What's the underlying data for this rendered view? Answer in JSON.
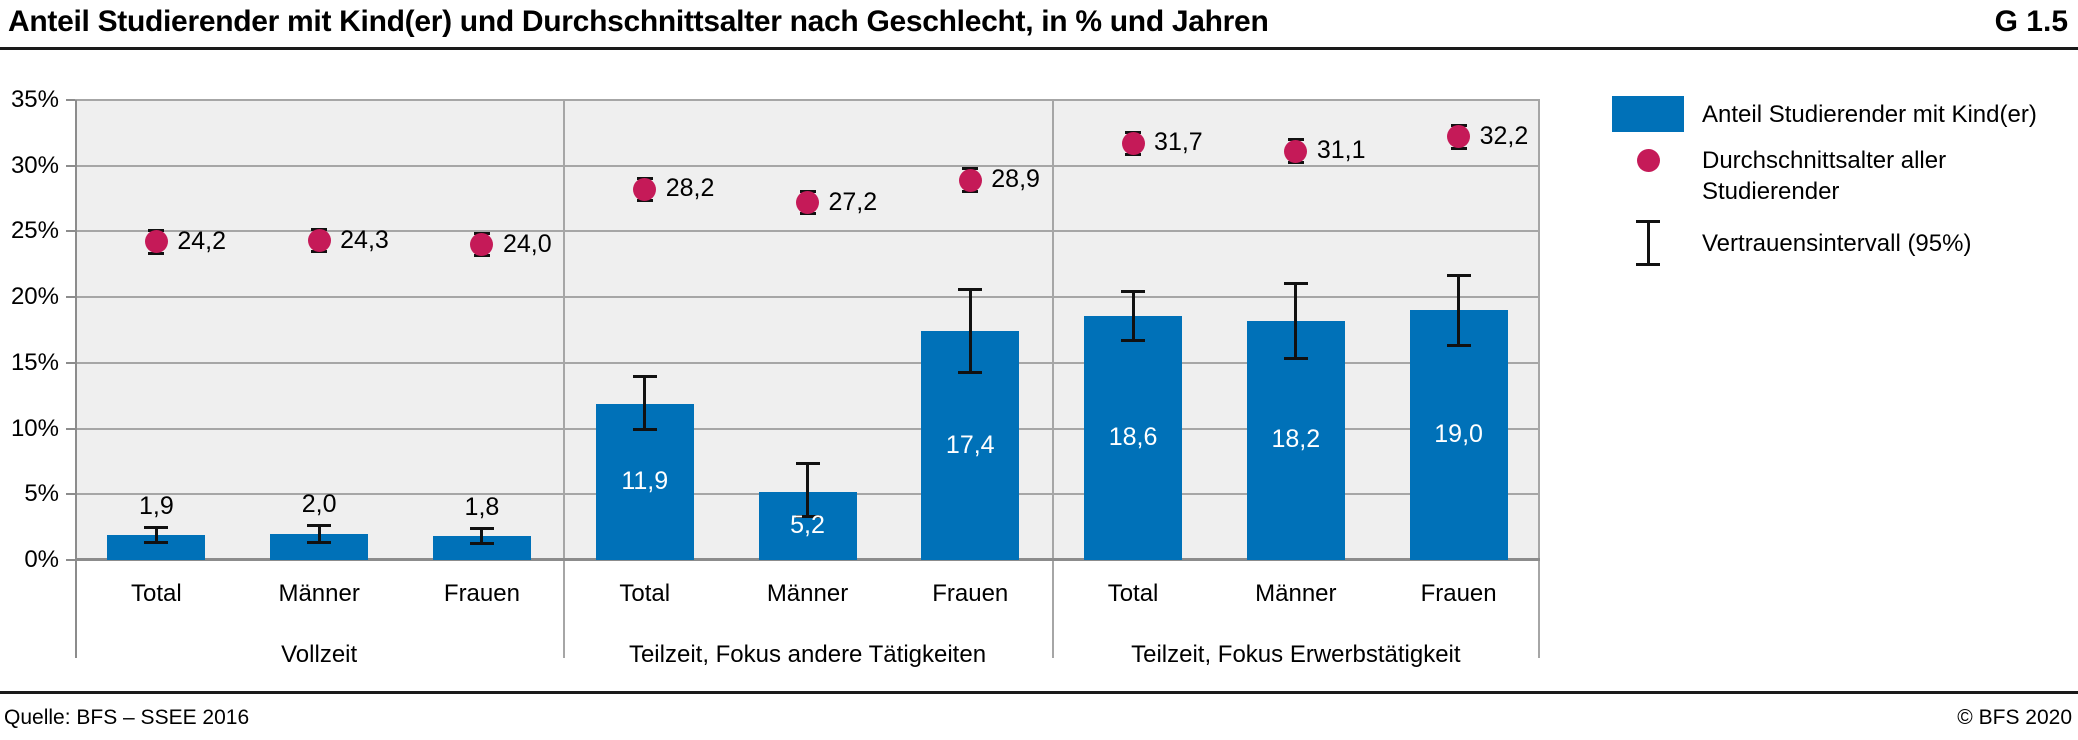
{
  "header": {
    "title": "Anteil Studierender mit Kind(er) und Durchschnittsalter nach Geschlecht, in % und Jahren",
    "figure_id": "G 1.5"
  },
  "footer": {
    "source": "Quelle: BFS – SSEE 2016",
    "copyright": "© BFS 2020"
  },
  "legend": {
    "items": [
      {
        "icon": "bar-swatch-icon",
        "label": "Anteil Studierender mit Kind(er)"
      },
      {
        "icon": "dot-icon",
        "label": "Durchschnittsalter aller Studierender"
      },
      {
        "icon": "error-bar-icon",
        "label": "Vertrauensintervall (95%)"
      }
    ]
  },
  "colors": {
    "bar": "#0071b8",
    "dot": "#c51a58",
    "plot_bg": "#efefef",
    "grid": "#a6a6a6",
    "axis": "#8c8c8c",
    "whisker": "#111111",
    "rule": "#1a1a1a"
  },
  "chart_data": {
    "type": "bar",
    "title": "Anteil Studierender mit Kind(er) und Durchschnittsalter nach Geschlecht, in % und Jahren",
    "unit_bars": "%",
    "unit_dots": "Jahre",
    "grid": true,
    "legend_position": "right",
    "y_axis": {
      "min": 0,
      "max": 35,
      "step": 5,
      "ticks": [
        {
          "value": 0,
          "label": "0%"
        },
        {
          "value": 5,
          "label": "5%"
        },
        {
          "value": 10,
          "label": "10%"
        },
        {
          "value": 15,
          "label": "15%"
        },
        {
          "value": 20,
          "label": "20%"
        },
        {
          "value": 25,
          "label": "25%"
        },
        {
          "value": 30,
          "label": "30%"
        },
        {
          "value": 35,
          "label": "35%"
        }
      ]
    },
    "series": [
      {
        "name": "Anteil Studierender mit Kind(er)",
        "type": "bar"
      },
      {
        "name": "Durchschnittsalter aller Studierender",
        "type": "point"
      },
      {
        "name": "Vertrauensintervall (95%)",
        "type": "error-bar"
      }
    ],
    "groups": [
      {
        "label": "Vollzeit",
        "items": [
          {
            "category": "Total",
            "bar_value": 1.9,
            "bar_label": "1,9",
            "bar_ci": [
              1.3,
              2.5
            ],
            "age_value": 24.2,
            "age_label": "24,2",
            "age_ci": [
              23.3,
              25.1
            ]
          },
          {
            "category": "Männer",
            "bar_value": 2.0,
            "bar_label": "2,0",
            "bar_ci": [
              1.3,
              2.7
            ],
            "age_value": 24.3,
            "age_label": "24,3",
            "age_ci": [
              23.4,
              25.2
            ]
          },
          {
            "category": "Frauen",
            "bar_value": 1.8,
            "bar_label": "1,8",
            "bar_ci": [
              1.2,
              2.4
            ],
            "age_value": 24.0,
            "age_label": "24,0",
            "age_ci": [
              23.1,
              24.9
            ]
          }
        ]
      },
      {
        "label": "Teilzeit, Fokus andere Tätigkeiten",
        "items": [
          {
            "category": "Total",
            "bar_value": 11.9,
            "bar_label": "11,9",
            "bar_ci": [
              9.9,
              14.0
            ],
            "age_value": 28.2,
            "age_label": "28,2",
            "age_ci": [
              27.3,
              29.1
            ]
          },
          {
            "category": "Männer",
            "bar_value": 5.2,
            "bar_label": "5,2",
            "bar_ci": [
              3.3,
              7.4
            ],
            "age_value": 27.2,
            "age_label": "27,2",
            "age_ci": [
              26.3,
              28.1
            ]
          },
          {
            "category": "Frauen",
            "bar_value": 17.4,
            "bar_label": "17,4",
            "bar_ci": [
              14.2,
              20.6
            ],
            "age_value": 28.9,
            "age_label": "28,9",
            "age_ci": [
              28.0,
              29.8
            ]
          }
        ]
      },
      {
        "label": "Teilzeit, Fokus Erwerbstätigkeit",
        "items": [
          {
            "category": "Total",
            "bar_value": 18.6,
            "bar_label": "18,6",
            "bar_ci": [
              16.7,
              20.5
            ],
            "age_value": 31.7,
            "age_label": "31,7",
            "age_ci": [
              30.8,
              32.6
            ]
          },
          {
            "category": "Männer",
            "bar_value": 18.2,
            "bar_label": "18,2",
            "bar_ci": [
              15.3,
              21.1
            ],
            "age_value": 31.1,
            "age_label": "31,1",
            "age_ci": [
              30.2,
              32.0
            ]
          },
          {
            "category": "Frauen",
            "bar_value": 19.0,
            "bar_label": "19,0",
            "bar_ci": [
              16.3,
              21.7
            ],
            "age_value": 32.2,
            "age_label": "32,2",
            "age_ci": [
              31.3,
              33.1
            ]
          }
        ]
      }
    ]
  }
}
